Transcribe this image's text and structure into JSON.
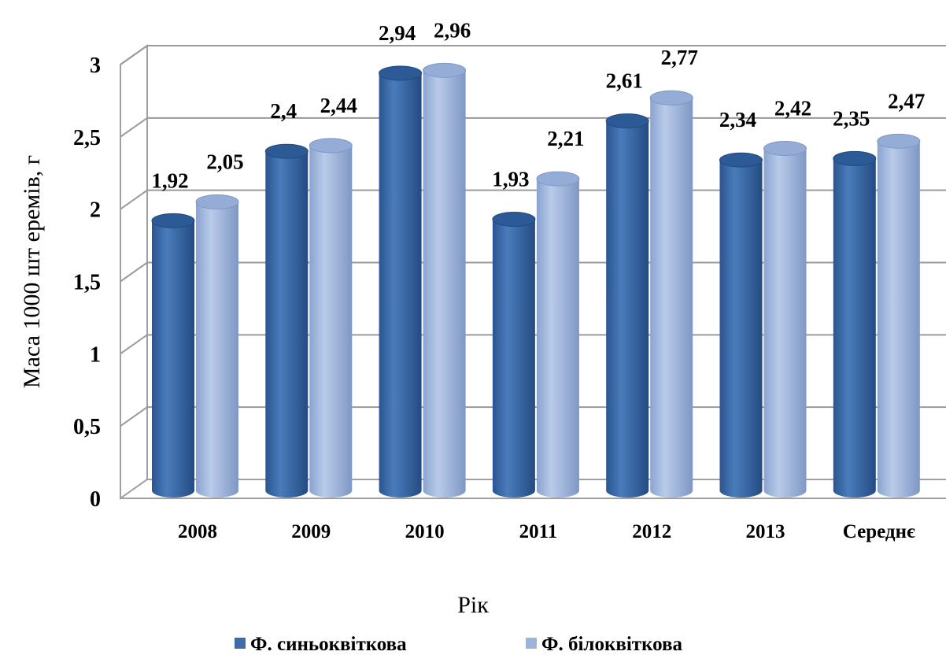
{
  "chart_data": {
    "type": "bar",
    "style": "3d-cylinder",
    "categories": [
      "2008",
      "2009",
      "2010",
      "2011",
      "2012",
      "2013",
      "Середнє"
    ],
    "series": [
      {
        "name": "Ф. синьоквіткова",
        "color": "#3f6ca6",
        "values": [
          1.92,
          2.4,
          2.94,
          1.93,
          2.61,
          2.34,
          2.35
        ],
        "labels": [
          "1,92",
          "2,4",
          "2,94",
          "1,93",
          "2,61",
          "2,34",
          "2,35"
        ]
      },
      {
        "name": "Ф. білоквіткова",
        "color": "#9db3da",
        "values": [
          2.05,
          2.44,
          2.96,
          2.21,
          2.77,
          2.42,
          2.47
        ],
        "labels": [
          "2,05",
          "2,44",
          "2,96",
          "2,21",
          "2,77",
          "2,42",
          "2,47"
        ]
      }
    ],
    "xlabel": "Рік",
    "ylabel": "Маса 1000 шт еремів, г",
    "ylim": [
      0,
      3
    ],
    "yticks": [
      0,
      0.5,
      1,
      1.5,
      2,
      2.5,
      3
    ],
    "ytick_labels": [
      "0",
      "0,5",
      "1",
      "1,5",
      "2",
      "2,5",
      "3"
    ],
    "grid": true,
    "legend_position": "bottom"
  }
}
